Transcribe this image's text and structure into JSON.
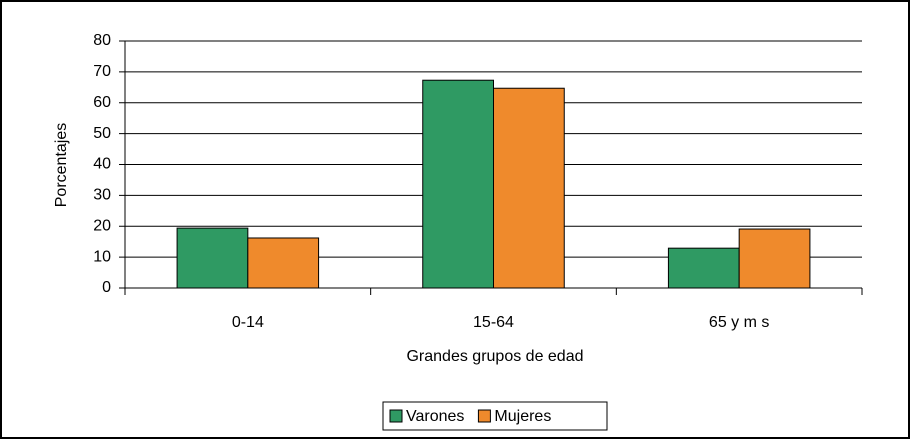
{
  "chart_data": {
    "type": "bar",
    "categories": [
      "0-14",
      "15-64",
      "65 y m s"
    ],
    "series": [
      {
        "name": "Varones",
        "color": "#2f9a63",
        "values": [
          19.4,
          67.3,
          12.9
        ]
      },
      {
        "name": "Mujeres",
        "color": "#ef8a2c",
        "values": [
          16.2,
          64.7,
          19.1
        ]
      }
    ],
    "ylim": [
      0,
      80
    ],
    "yticks": [
      0,
      10,
      20,
      30,
      40,
      50,
      60,
      70,
      80
    ],
    "y_label": "Porcentajes",
    "x_label": "Grandes grupos de edad",
    "grid": true,
    "legend": "bottom"
  }
}
